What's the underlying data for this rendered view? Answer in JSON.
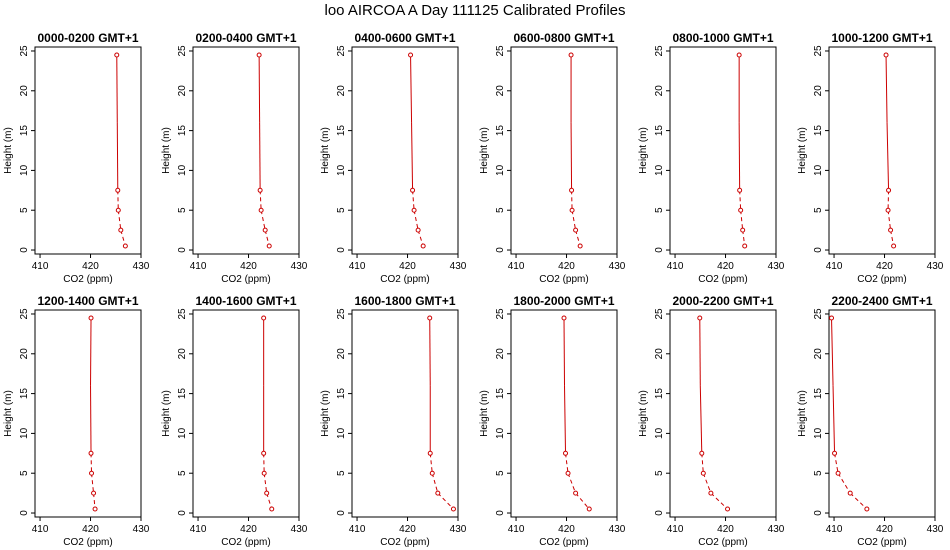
{
  "title": "loo AIRCOA A  Day 111125  Calibrated Profiles",
  "chart_data": {
    "type": "line",
    "xlabel": "CO2 (ppm)",
    "ylabel": "Height (m)",
    "xlim": [
      409,
      430
    ],
    "ylim": [
      -0.5,
      25.5
    ],
    "xticks": [
      410,
      420,
      430
    ],
    "yticks": [
      0,
      5,
      10,
      15,
      20,
      25
    ],
    "heights": [
      24.5,
      16,
      7.5,
      5,
      2.5,
      0.5
    ],
    "marker_heights": [
      24.5,
      7.5,
      5,
      2.5,
      0.5
    ],
    "line_color": "#cc0000",
    "panels": [
      {
        "title": "0000-0200 GMT+1",
        "co2": [
          425.2,
          425.3,
          425.4,
          425.5,
          426.0,
          426.9
        ]
      },
      {
        "title": "0200-0400 GMT+1",
        "co2": [
          422.1,
          422.2,
          422.3,
          422.5,
          423.3,
          424.1
        ]
      },
      {
        "title": "0400-0600 GMT+1",
        "co2": [
          420.6,
          420.8,
          421.0,
          421.3,
          422.1,
          423.1
        ]
      },
      {
        "title": "0600-0800 GMT+1",
        "co2": [
          420.9,
          420.9,
          421.0,
          421.1,
          421.8,
          422.7
        ]
      },
      {
        "title": "0800-1000 GMT+1",
        "co2": [
          422.7,
          422.7,
          422.8,
          423.0,
          423.4,
          423.8
        ]
      },
      {
        "title": "1000-1200 GMT+1",
        "co2": [
          420.3,
          420.5,
          420.8,
          420.7,
          421.2,
          421.8
        ]
      },
      {
        "title": "1200-1400 GMT+1",
        "co2": [
          420.1,
          420.0,
          420.1,
          420.2,
          420.6,
          420.9
        ]
      },
      {
        "title": "1400-1600 GMT+1",
        "co2": [
          423.0,
          423.0,
          423.0,
          423.1,
          423.6,
          424.6
        ]
      },
      {
        "title": "1600-1800 GMT+1",
        "co2": [
          424.4,
          424.5,
          424.5,
          424.9,
          426.0,
          429.1
        ]
      },
      {
        "title": "1800-2000 GMT+1",
        "co2": [
          419.5,
          419.6,
          419.8,
          420.3,
          421.8,
          424.5
        ]
      },
      {
        "title": "2000-2200 GMT+1",
        "co2": [
          414.9,
          415.0,
          415.3,
          415.6,
          417.1,
          420.4
        ]
      },
      {
        "title": "2200-2400 GMT+1",
        "co2": [
          409.5,
          409.8,
          410.1,
          410.8,
          413.2,
          416.5
        ]
      }
    ]
  }
}
